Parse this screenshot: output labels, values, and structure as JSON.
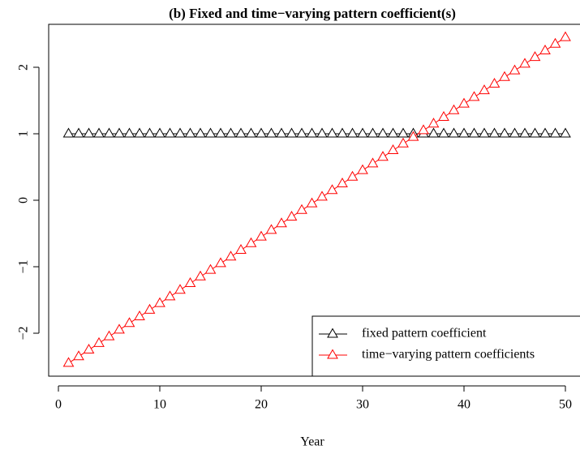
{
  "chart_data": {
    "type": "line",
    "title": "(b) Fixed and time−varying pattern coefficient(s)",
    "x_label": "Year",
    "x": [
      1,
      2,
      3,
      4,
      5,
      6,
      7,
      8,
      9,
      10,
      11,
      12,
      13,
      14,
      15,
      16,
      17,
      18,
      19,
      20,
      21,
      22,
      23,
      24,
      25,
      26,
      27,
      28,
      29,
      30,
      31,
      32,
      33,
      34,
      35,
      36,
      37,
      38,
      39,
      40,
      41,
      42,
      43,
      44,
      45,
      46,
      47,
      48,
      49,
      50
    ],
    "series": [
      {
        "name": "fixed pattern coefficient",
        "color": "#000000",
        "values": [
          1,
          1,
          1,
          1,
          1,
          1,
          1,
          1,
          1,
          1,
          1,
          1,
          1,
          1,
          1,
          1,
          1,
          1,
          1,
          1,
          1,
          1,
          1,
          1,
          1,
          1,
          1,
          1,
          1,
          1,
          1,
          1,
          1,
          1,
          1,
          1,
          1,
          1,
          1,
          1,
          1,
          1,
          1,
          1,
          1,
          1,
          1,
          1,
          1,
          1
        ]
      },
      {
        "name": "time−varying pattern coefficients",
        "color": "#ff0000",
        "values": [
          -2.45,
          -2.35,
          -2.25,
          -2.15,
          -2.05,
          -1.95,
          -1.85,
          -1.75,
          -1.65,
          -1.55,
          -1.45,
          -1.35,
          -1.25,
          -1.15,
          -1.05,
          -0.95,
          -0.85,
          -0.75,
          -0.65,
          -0.55,
          -0.45,
          -0.35,
          -0.25,
          -0.15,
          -0.05,
          0.05,
          0.15,
          0.25,
          0.35,
          0.45,
          0.55,
          0.65,
          0.75,
          0.85,
          0.95,
          1.05,
          1.15,
          1.25,
          1.35,
          1.45,
          1.55,
          1.65,
          1.75,
          1.85,
          1.95,
          2.05,
          2.15,
          2.25,
          2.35,
          2.45
        ]
      }
    ],
    "xlim": [
      -0.96,
      51.96
    ],
    "xticks": [
      0,
      10,
      20,
      30,
      40,
      50
    ],
    "ylim": [
      -2.646,
      2.646
    ],
    "yticks": [
      {
        "value": -2,
        "label": "−2"
      },
      {
        "value": -1,
        "label": "−1"
      },
      0,
      1,
      2
    ],
    "legend": "bottom-right"
  }
}
